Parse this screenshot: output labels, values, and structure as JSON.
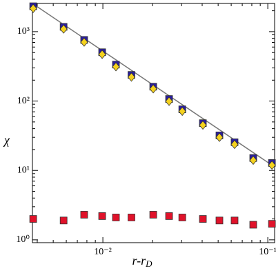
{
  "chart_data": {
    "type": "scatter",
    "xlog": true,
    "ylog": true,
    "xlabel": {
      "text": "r-r",
      "subscript": "D"
    },
    "ylabel": "χ",
    "xlim": [
      0.00374,
      0.11
    ],
    "ylim": [
      0.91,
      2550
    ],
    "xticks": [
      {
        "value": 0.01,
        "label": "10⁻²"
      },
      {
        "value": 0.1,
        "label": "10⁻¹"
      }
    ],
    "yticks": [
      {
        "value": 1,
        "label": "10⁰"
      },
      {
        "value": 10,
        "label": "10¹"
      },
      {
        "value": 100,
        "label": "10²"
      },
      {
        "value": 1000,
        "label": "10³"
      }
    ],
    "x": [
      0.00378,
      0.00578,
      0.0077,
      0.0099,
      0.012,
      0.0149,
      0.0202,
      0.0252,
      0.0303,
      0.0404,
      0.0509,
      0.0629,
      0.0816,
      0.106
    ],
    "series": [
      {
        "kind": "line",
        "color": "#777777",
        "x": [
          0.00374,
          0.11
        ],
        "values": [
          2550,
          11.2
        ]
      },
      {
        "kind": "marker",
        "marker": "square",
        "color": "#2b1f9c",
        "values": [
          2323,
          1173,
          760,
          505,
          335,
          238,
          161,
          107,
          76,
          48,
          32,
          25.5,
          15.1,
          12.8
        ]
      },
      {
        "kind": "marker",
        "marker": "diamond",
        "color": "#f5d21e",
        "values": [
          2160,
          1090,
          707,
          470,
          312,
          221,
          150,
          99,
          71,
          45,
          30,
          23.7,
          14,
          11.9
        ]
      },
      {
        "kind": "marker",
        "marker": "square",
        "color": "#e0122a",
        "values": [
          2.0,
          1.9,
          2.3,
          2.2,
          2.1,
          2.1,
          2.3,
          2.2,
          2.1,
          2.0,
          1.9,
          1.9,
          1.65,
          1.7
        ]
      }
    ]
  }
}
